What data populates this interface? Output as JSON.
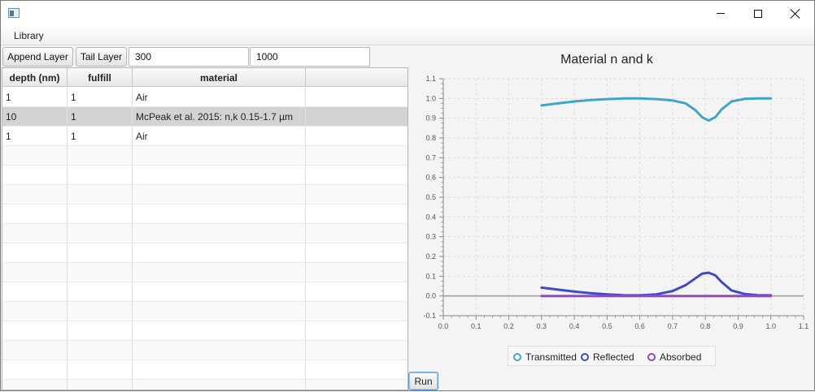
{
  "window": {
    "minimize_icon": "minimize-icon",
    "maximize_icon": "maximize-icon",
    "close_icon": "close-icon",
    "app_icon": "app-icon"
  },
  "menu": {
    "items": [
      "Library"
    ]
  },
  "toolbar": {
    "append_label": "Append Layer",
    "tail_label": "Tail Layer",
    "wavelength_min": "300",
    "wavelength_max": "1000"
  },
  "table": {
    "columns": [
      "depth (nm)",
      "fulfill",
      "material",
      ""
    ],
    "rows": [
      [
        "1",
        "1",
        "Air",
        ""
      ],
      [
        "10",
        "1",
        "McPeak et al. 2015: n,k 0.15-1.7 µm",
        ""
      ],
      [
        "1",
        "1",
        "Air",
        ""
      ]
    ],
    "selected_row": 1
  },
  "run_label": "Run",
  "chart_data": {
    "type": "line",
    "title": "Material n and k",
    "xlabel": "",
    "ylabel": "",
    "xlim": [
      0.0,
      1.1
    ],
    "ylim": [
      -0.1,
      1.1
    ],
    "x_ticks": [
      "0.0",
      "0.1",
      "0.2",
      "0.3",
      "0.4",
      "0.5",
      "0.6",
      "0.7",
      "0.8",
      "0.9",
      "1.0",
      "1.1"
    ],
    "y_ticks": [
      "-0.1",
      "0.0",
      "0.1",
      "0.2",
      "0.3",
      "0.4",
      "0.5",
      "0.6",
      "0.7",
      "0.8",
      "0.9",
      "1.0",
      "1.1"
    ],
    "grid": true,
    "legend_position": "bottom",
    "series": [
      {
        "name": "Transmitted",
        "color": "#3fa6c9",
        "x": [
          0.3,
          0.35,
          0.4,
          0.45,
          0.5,
          0.55,
          0.6,
          0.65,
          0.7,
          0.74,
          0.77,
          0.79,
          0.81,
          0.83,
          0.85,
          0.88,
          0.92,
          0.96,
          1.0
        ],
        "y": [
          0.965,
          0.975,
          0.985,
          0.992,
          0.997,
          1.0,
          1.0,
          0.997,
          0.99,
          0.975,
          0.94,
          0.905,
          0.888,
          0.905,
          0.945,
          0.985,
          0.998,
          1.0,
          1.0
        ]
      },
      {
        "name": "Reflected",
        "color": "#3d4bc7",
        "x": [
          0.3,
          0.35,
          0.4,
          0.45,
          0.5,
          0.55,
          0.6,
          0.65,
          0.7,
          0.74,
          0.77,
          0.79,
          0.81,
          0.83,
          0.85,
          0.88,
          0.92,
          0.96,
          1.0
        ],
        "y": [
          0.042,
          0.032,
          0.022,
          0.014,
          0.008,
          0.004,
          0.003,
          0.008,
          0.025,
          0.055,
          0.09,
          0.113,
          0.118,
          0.105,
          0.07,
          0.028,
          0.01,
          0.004,
          0.003
        ]
      },
      {
        "name": "Absorbed",
        "color": "#9a45c4",
        "x": [
          0.3,
          0.4,
          0.5,
          0.6,
          0.7,
          0.8,
          0.9,
          1.0
        ],
        "y": [
          0.0,
          0.0,
          0.0,
          0.0,
          0.0,
          0.0,
          0.0,
          0.0
        ]
      }
    ]
  }
}
